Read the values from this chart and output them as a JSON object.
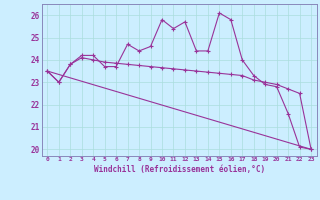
{
  "background_color": "#cceeff",
  "line_color": "#993399",
  "ylabel_vals": [
    20,
    21,
    22,
    23,
    24,
    25,
    26
  ],
  "xlabel": "Windchill (Refroidissement éolien,°C)",
  "x_labels": [
    "0",
    "1",
    "2",
    "3",
    "4",
    "5",
    "6",
    "7",
    "8",
    "9",
    "10",
    "11",
    "12",
    "13",
    "14",
    "15",
    "16",
    "17",
    "18",
    "19",
    "20",
    "21",
    "22",
    "23"
  ],
  "series1_x": [
    0,
    1,
    2,
    3,
    4,
    5,
    6,
    7,
    8,
    9,
    10,
    11,
    12,
    13,
    14,
    15,
    16,
    17,
    18,
    19,
    20,
    21,
    22,
    23
  ],
  "series1_y": [
    23.5,
    23.0,
    23.8,
    24.2,
    24.2,
    23.7,
    23.7,
    24.7,
    24.4,
    24.6,
    25.8,
    25.4,
    25.7,
    24.4,
    24.4,
    26.1,
    25.8,
    24.0,
    23.3,
    22.9,
    22.8,
    21.6,
    20.1,
    20.0
  ],
  "series2_x": [
    0,
    1,
    2,
    3,
    4,
    5,
    6,
    7,
    8,
    9,
    10,
    11,
    12,
    13,
    14,
    15,
    16,
    17,
    18,
    19,
    20,
    21,
    22,
    23
  ],
  "series2_y": [
    23.5,
    23.0,
    23.8,
    24.1,
    24.0,
    23.9,
    23.85,
    23.8,
    23.75,
    23.7,
    23.65,
    23.6,
    23.55,
    23.5,
    23.45,
    23.4,
    23.35,
    23.3,
    23.1,
    23.0,
    22.9,
    22.7,
    22.5,
    20.0
  ],
  "series3_x": [
    0,
    23
  ],
  "series3_y": [
    23.5,
    20.0
  ],
  "ylim": [
    19.7,
    26.5
  ],
  "xlim": [
    -0.5,
    23.5
  ],
  "grid_color": "#aadddd",
  "spine_color": "#aaaacc"
}
